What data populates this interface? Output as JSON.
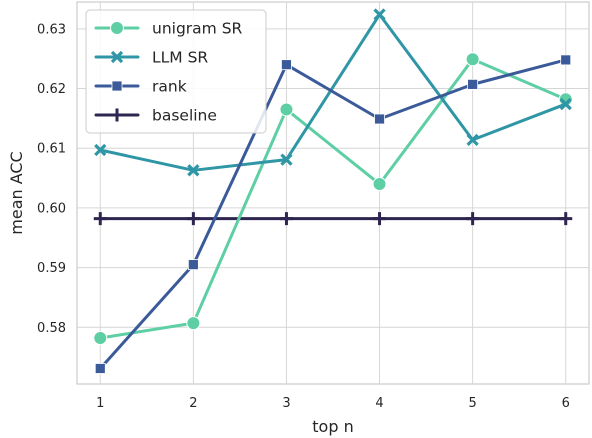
{
  "chart_data": {
    "type": "line",
    "x": [
      1,
      2,
      3,
      4,
      5,
      6
    ],
    "xlabel": "top n",
    "ylabel": "mean ACC",
    "xlim": [
      0.75,
      6.25
    ],
    "ylim": [
      0.5705,
      0.6345
    ],
    "xticks": [
      "1",
      "2",
      "3",
      "4",
      "5",
      "6"
    ],
    "yticks": [
      "0.58",
      "0.59",
      "0.60",
      "0.61",
      "0.62",
      "0.63"
    ],
    "ytick_values": [
      0.58,
      0.59,
      0.6,
      0.61,
      0.62,
      0.63
    ],
    "grid": true,
    "legend_position": "top-left",
    "series": [
      {
        "name": "unigram SR",
        "values": [
          0.5782,
          0.5807,
          0.6165,
          0.604,
          0.6249,
          0.6182
        ],
        "color": "#5ecfa4",
        "marker": "circle"
      },
      {
        "name": "LLM SR",
        "values": [
          0.6097,
          0.6063,
          0.6081,
          0.6324,
          0.6114,
          0.6174
        ],
        "color": "#2f96a6",
        "marker": "x"
      },
      {
        "name": "rank",
        "values": [
          0.5731,
          0.5905,
          0.624,
          0.6149,
          0.6207,
          0.6248
        ],
        "color": "#3a5a99",
        "marker": "square"
      },
      {
        "name": "baseline",
        "values": [
          0.5982,
          0.5982,
          0.5982,
          0.5982,
          0.5982,
          0.5982
        ],
        "color": "#2e2550",
        "marker": "plus"
      }
    ]
  }
}
